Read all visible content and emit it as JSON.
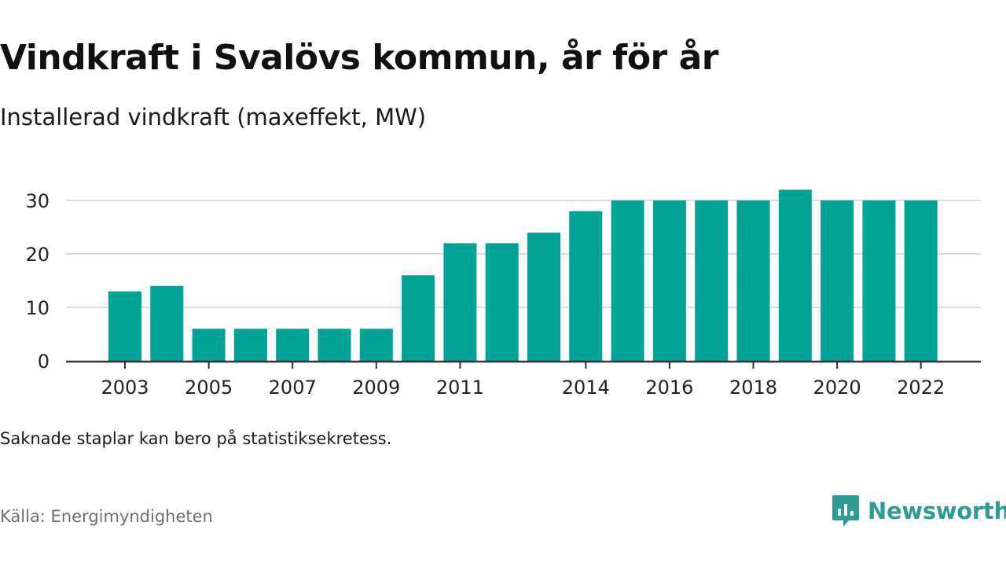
{
  "title": "Vindkraft i Svalövs kommun, år för år",
  "subtitle": "Installerad vindkraft (maxeffekt, MW)",
  "note": "Saknade staplar kan bero på statistiksekretess.",
  "source": "Källa: Energimyndigheten",
  "brand": {
    "name": "Newsworthy",
    "icon": "newsworthy-logo-icon",
    "color": "#2e9c91"
  },
  "chart_data": {
    "type": "bar",
    "title": "Vindkraft i Svalövs kommun, år för år",
    "subtitle": "Installerad vindkraft (maxeffekt, MW)",
    "categories": [
      "2003",
      "2004",
      "2005",
      "2006",
      "2007",
      "2008",
      "2009",
      "2010",
      "2011",
      "2012",
      "2013",
      "2014",
      "2015",
      "2016",
      "2017",
      "2018",
      "2019",
      "2020",
      "2021",
      "2022"
    ],
    "values": [
      13,
      14,
      6,
      6,
      6,
      6,
      6,
      16,
      22,
      22,
      24,
      28,
      30,
      30,
      30,
      30,
      32,
      30,
      30,
      30
    ],
    "x_tick_labels": [
      "2003",
      "2005",
      "2007",
      "2009",
      "2011",
      "2014",
      "2016",
      "2018",
      "2020",
      "2022"
    ],
    "y_ticks": [
      0,
      10,
      20,
      30
    ],
    "ylim": [
      0,
      32
    ],
    "bar_color": "#00a396",
    "grid": true
  }
}
